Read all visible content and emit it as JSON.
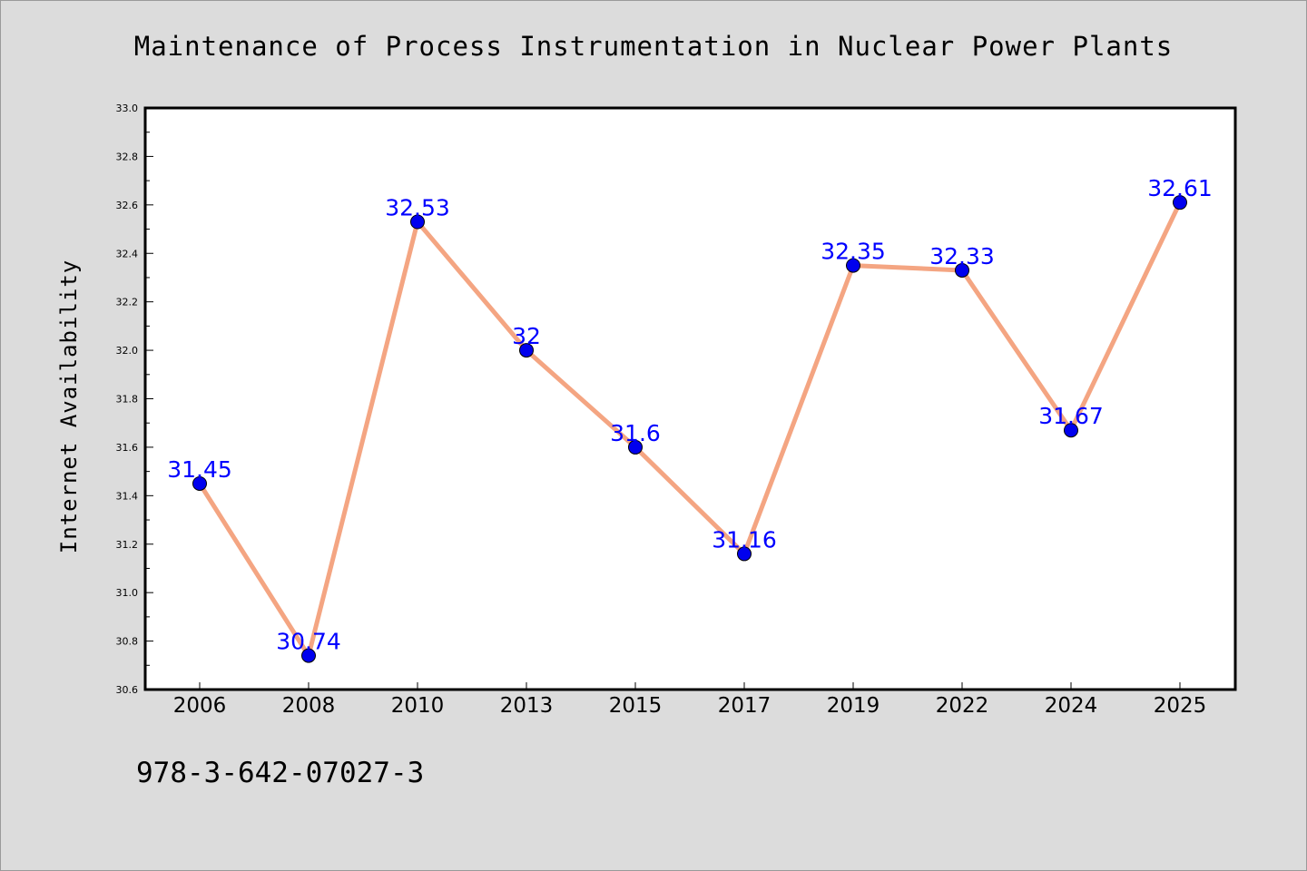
{
  "chart_data": {
    "type": "line",
    "title": "Maintenance of Process Instrumentation in Nuclear Power Plants",
    "xlabel": "",
    "ylabel": "Internet Availability",
    "categories": [
      "2006",
      "2008",
      "2010",
      "2013",
      "2015",
      "2017",
      "2019",
      "2022",
      "2024",
      "2025"
    ],
    "series": [
      {
        "values": [
          31.45,
          30.74,
          32.53,
          32.0,
          31.6,
          31.16,
          32.35,
          32.33,
          31.67,
          32.61
        ],
        "data_labels": [
          "31.45",
          "30.74",
          "32.53",
          "32",
          "31.6",
          "31.16",
          "32.35",
          "32.33",
          "31.67",
          "32.61"
        ]
      }
    ],
    "ylim": [
      30.6,
      33.0
    ],
    "yticks": [
      "30.6",
      "30.8",
      "31.0",
      "31.2",
      "31.4",
      "31.6",
      "31.8",
      "32.0",
      "32.2",
      "32.4",
      "32.6",
      "32.8",
      "33.0"
    ],
    "grid": false,
    "legend": "none",
    "colors": {
      "line": "#f4a582",
      "marker": "#0000ee",
      "data_label": "#0000ff",
      "background": "#dcdcdc",
      "plot_area": "#ffffff"
    }
  },
  "footer": {
    "code": "978-3-642-07027-3"
  }
}
